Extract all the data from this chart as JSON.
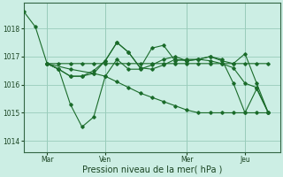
{
  "background_color": "#cceee4",
  "grid_color": "#99ccbb",
  "line_color": "#1a6b2a",
  "marker_color": "#1a6b2a",
  "xlabel": "Pression niveau de la mer( hPa )",
  "yticks": [
    1014,
    1015,
    1016,
    1017,
    1018
  ],
  "xtick_labels": [
    "Mar",
    "Ven",
    "Mer",
    "Jeu"
  ],
  "xtick_positions": [
    2,
    7,
    14,
    19
  ],
  "ylim": [
    1013.6,
    1018.9
  ],
  "xlim": [
    0,
    22
  ],
  "series": [
    {
      "x": [
        0,
        1,
        2,
        3,
        4,
        5,
        6,
        7,
        8,
        9,
        10,
        11,
        12,
        13,
        14,
        15,
        16,
        17,
        18,
        19,
        20,
        21
      ],
      "y": [
        1018.6,
        1018.05,
        1016.75,
        1016.75,
        1016.75,
        1016.75,
        1016.75,
        1016.75,
        1016.75,
        1016.75,
        1016.75,
        1016.75,
        1016.75,
        1016.75,
        1016.75,
        1016.75,
        1016.75,
        1016.75,
        1016.75,
        1016.75,
        1016.75,
        1016.75
      ]
    },
    {
      "x": [
        2,
        3,
        4,
        5,
        6,
        7,
        8,
        9,
        10,
        11,
        12,
        13,
        14,
        15,
        16,
        17,
        18,
        19,
        20,
        21
      ],
      "y": [
        1016.75,
        1016.55,
        1015.3,
        1014.5,
        1014.85,
        1016.3,
        1016.9,
        1016.55,
        1016.55,
        1016.7,
        1016.9,
        1017.0,
        1016.85,
        1016.9,
        1016.85,
        1016.75,
        1016.6,
        1016.05,
        1015.9,
        1015.0
      ]
    },
    {
      "x": [
        2,
        3,
        4,
        5,
        6,
        7,
        8,
        9,
        10,
        11,
        12,
        13,
        14,
        15,
        16,
        17,
        18,
        19,
        20,
        21
      ],
      "y": [
        1016.75,
        1016.55,
        1016.3,
        1016.3,
        1016.5,
        1016.85,
        1017.5,
        1017.15,
        1016.6,
        1017.3,
        1017.4,
        1016.85,
        1016.9,
        1016.9,
        1017.0,
        1016.85,
        1016.75,
        1017.1,
        1016.05,
        1015.0
      ]
    },
    {
      "x": [
        2,
        3,
        4,
        5,
        6,
        7,
        8,
        9,
        10,
        11,
        12,
        13,
        14,
        15,
        16,
        17,
        18,
        19,
        20,
        21
      ],
      "y": [
        1016.75,
        1016.55,
        1016.3,
        1016.3,
        1016.4,
        1016.85,
        1017.5,
        1017.15,
        1016.6,
        1016.55,
        1016.7,
        1016.9,
        1016.85,
        1016.9,
        1017.0,
        1016.9,
        1016.05,
        1015.0,
        1015.85,
        1015.0
      ]
    },
    {
      "x": [
        2,
        4,
        6,
        7,
        8,
        9,
        10,
        11,
        12,
        13,
        14,
        15,
        16,
        17,
        18,
        19,
        20,
        21
      ],
      "y": [
        1016.75,
        1016.55,
        1016.4,
        1016.3,
        1016.1,
        1015.9,
        1015.7,
        1015.55,
        1015.4,
        1015.25,
        1015.1,
        1015.0,
        1015.0,
        1015.0,
        1015.0,
        1015.0,
        1015.0,
        1015.0
      ]
    }
  ]
}
